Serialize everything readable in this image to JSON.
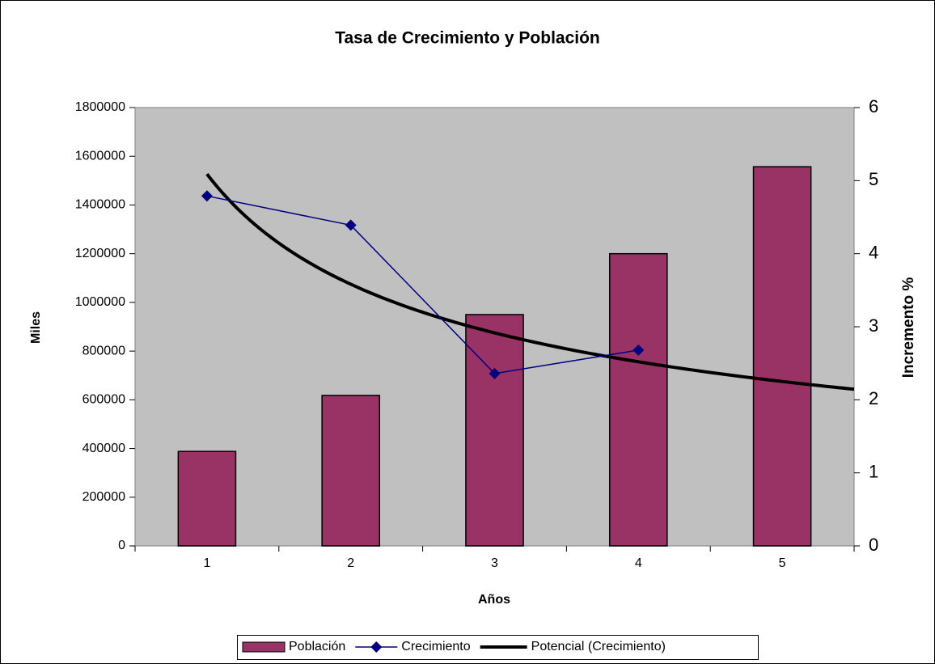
{
  "chart_data": {
    "type": "bar",
    "title": "Tasa de Crecimiento y Población",
    "x_label": "Años",
    "y_label": "Miles",
    "y2_label": "Incremento %",
    "categories": [
      "1",
      "2",
      "3",
      "4",
      "5"
    ],
    "series": [
      {
        "name": "Población",
        "type": "bar",
        "color": "#993366",
        "values": [
          388000,
          618000,
          950000,
          1200000,
          1557000
        ]
      },
      {
        "name": "Crecimiento",
        "type": "line",
        "color": "#000080",
        "axis": "y2",
        "values": [
          4.79,
          4.39,
          2.36,
          2.68,
          null
        ]
      }
    ],
    "trendline": {
      "name": "Potencial (Crecimiento)",
      "type": "power",
      "color": "#000000",
      "coefficient": 5.09,
      "exponent": -0.507,
      "x_range": [
        1,
        5.5
      ]
    },
    "ylim": [
      0,
      1800000
    ],
    "yticks": [
      0,
      200000,
      400000,
      600000,
      800000,
      1000000,
      1200000,
      1400000,
      1600000,
      1800000
    ],
    "y2lim": [
      0,
      6
    ],
    "y2ticks": [
      0,
      1,
      2,
      3,
      4,
      5,
      6
    ],
    "grid": false,
    "plot_background": "#c0c0c0",
    "legend": "bottom"
  }
}
